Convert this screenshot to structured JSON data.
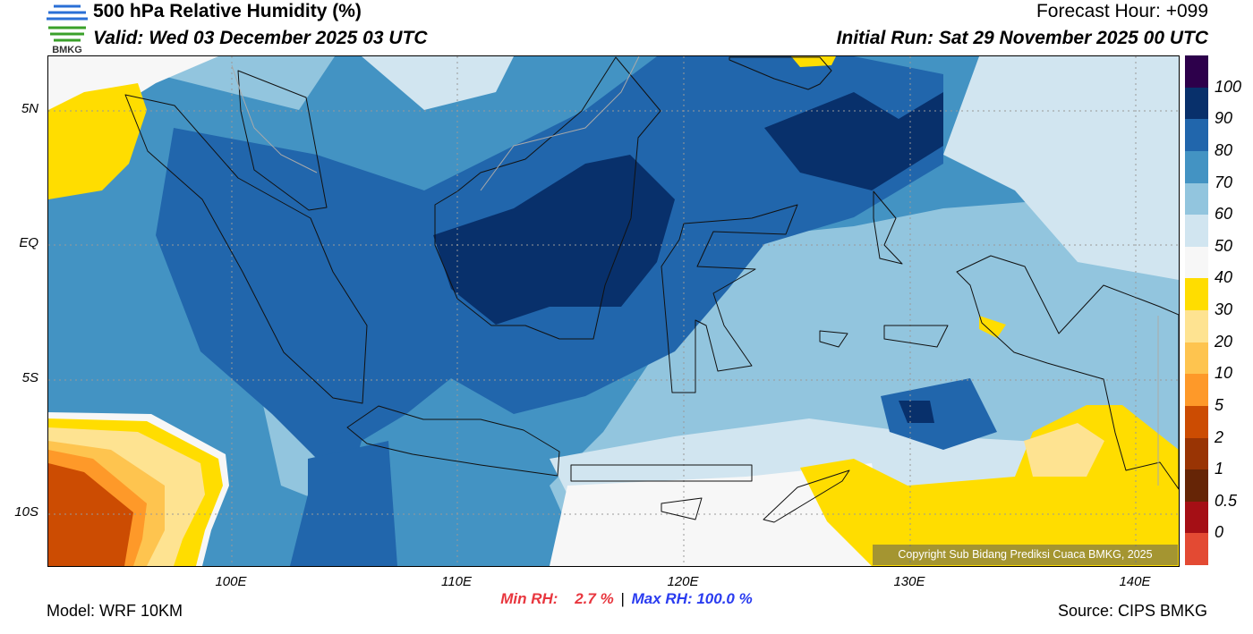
{
  "header": {
    "title": "500 hPa Relative Humidity (%)",
    "valid": "Valid: Wed 03 December 2025 03 UTC",
    "forecast_hour": "Forecast Hour: +099",
    "initial_run": "Initial Run: Sat 29 November 2025 00 UTC",
    "logo_text": "BMKG"
  },
  "axes": {
    "lat_labels": [
      "5N",
      "EQ",
      "5S",
      "10S"
    ],
    "lon_labels": [
      "100E",
      "110E",
      "120E",
      "130E",
      "140E"
    ]
  },
  "colorbar": {
    "colors": [
      "#2d004b",
      "#08306b",
      "#2166ac",
      "#4393c3",
      "#92c5de",
      "#d1e5f0",
      "#f7f7f7",
      "#ffdd00",
      "#fee391",
      "#fec44f",
      "#fe9929",
      "#cc4c02",
      "#993404",
      "#662506",
      "#a50f15",
      "#e34a33"
    ],
    "labels": [
      "100",
      "90",
      "80",
      "70",
      "60",
      "50",
      "40",
      "30",
      "20",
      "10",
      "5",
      "2",
      "1",
      "0.5",
      "0"
    ]
  },
  "copyright": "Copyright Sub Bidang Prediksi Cuaca BMKG, 2025",
  "stats": {
    "min_label": "Min RH:",
    "min_value": "2.7 %",
    "separator": "|",
    "max_label": "Max RH:",
    "max_value": "100.0 %",
    "min_color": "#e8363e",
    "max_color": "#2a3cf0"
  },
  "footer": {
    "model": "Model: WRF 10KM",
    "source": "Source: CIPS BMKG"
  }
}
